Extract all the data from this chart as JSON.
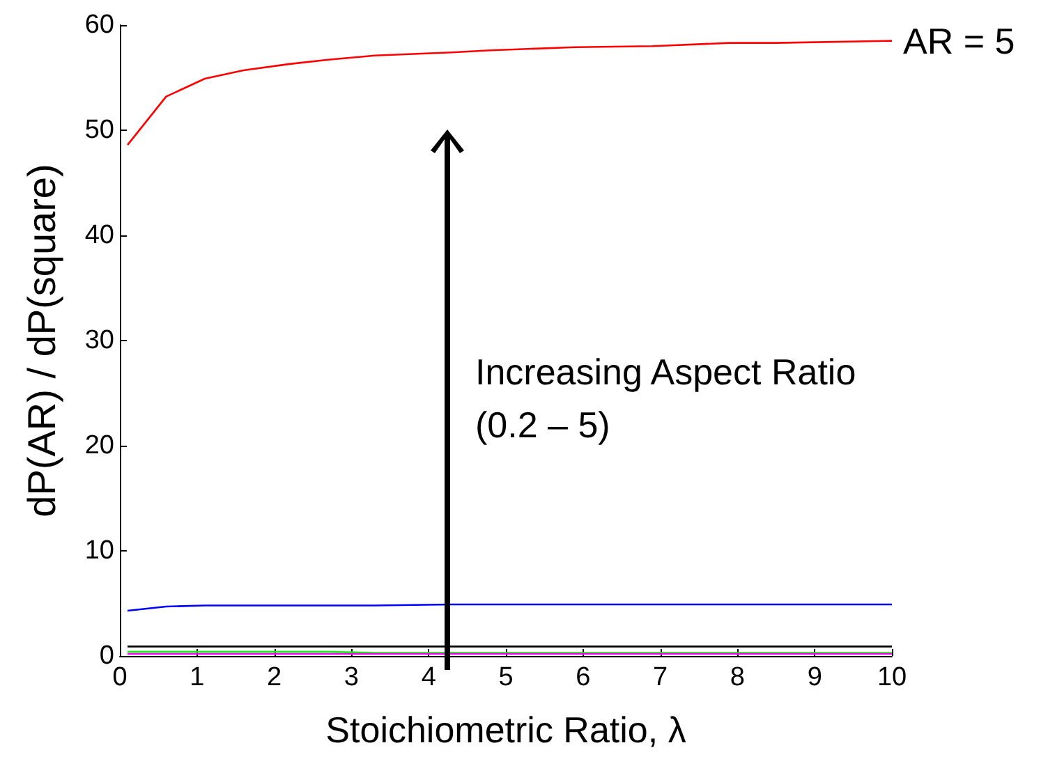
{
  "chart_data": {
    "type": "line",
    "xlabel": "Stoichiometric Ratio, λ",
    "ylabel": "dP(AR) / dP(square)",
    "x": [
      0.1,
      0.6,
      1.1,
      1.6,
      2.2,
      2.7,
      3.3,
      4.3,
      4.8,
      5.9,
      6.9,
      7.9,
      8.5,
      10
    ],
    "series": [
      {
        "color": "#ff0000",
        "values": [
          48.6,
          53.2,
          54.9,
          55.7,
          56.3,
          56.7,
          57.1,
          57.4,
          57.6,
          57.9,
          58.0,
          58.3,
          58.3,
          58.5
        ]
      },
      {
        "color": "#0000ff",
        "values": [
          4.3,
          4.7,
          4.8,
          4.8,
          4.8,
          4.8,
          4.8,
          4.9,
          4.9,
          4.9,
          4.9,
          4.9,
          4.9,
          4.9
        ]
      },
      {
        "color": "#000000",
        "values": [
          0.9,
          0.9,
          0.9,
          0.9,
          0.9,
          0.9,
          0.9,
          0.9,
          0.9,
          0.9,
          0.9,
          0.9,
          0.9,
          0.9
        ]
      },
      {
        "color": "#00ff00",
        "values": [
          0.4,
          0.4,
          0.4,
          0.4,
          0.4,
          0.4,
          0.3,
          0.3,
          0.3,
          0.3,
          0.3,
          0.3,
          0.3,
          0.3
        ]
      },
      {
        "color": "#ff00ff",
        "values": [
          0.2,
          0.2,
          0.2,
          0.2,
          0.2,
          0.2,
          0.2,
          0.2,
          0.2,
          0.2,
          0.2,
          0.2,
          0.2,
          0.2
        ]
      }
    ],
    "xlim": [
      0,
      10
    ],
    "xticks": [
      0,
      1,
      2,
      3,
      4,
      5,
      6,
      7,
      8,
      9,
      10
    ],
    "ylim": [
      0,
      60
    ],
    "yticks": [
      0,
      10,
      20,
      30,
      40,
      50,
      60
    ],
    "grid": false,
    "marker": "none",
    "line_style": "solid",
    "annotations": [
      {
        "text": "AR = 5",
        "x": 10,
        "y": 58.5
      },
      "Increasing Aspect Ratio\n(0.2 – 5)"
    ]
  }
}
